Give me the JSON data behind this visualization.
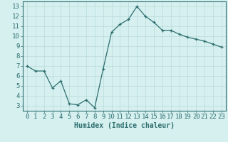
{
  "x": [
    0,
    1,
    2,
    3,
    4,
    5,
    6,
    7,
    8,
    9,
    10,
    11,
    12,
    13,
    14,
    15,
    16,
    17,
    18,
    19,
    20,
    21,
    22,
    23
  ],
  "y": [
    7.0,
    6.5,
    6.5,
    4.8,
    5.5,
    3.2,
    3.1,
    3.6,
    2.8,
    6.7,
    10.4,
    11.2,
    11.7,
    13.0,
    12.0,
    11.4,
    10.6,
    10.6,
    10.2,
    9.9,
    9.7,
    9.5,
    9.2,
    8.9
  ],
  "line_color": "#2e6e6e",
  "marker": "+",
  "marker_size": 3,
  "bg_color": "#d6f0f0",
  "grid_color": "#b8dada",
  "xlabel": "Humidex (Indice chaleur)",
  "xlim": [
    -0.5,
    23.5
  ],
  "ylim": [
    2.5,
    13.5
  ],
  "yticks": [
    3,
    4,
    5,
    6,
    7,
    8,
    9,
    10,
    11,
    12,
    13
  ],
  "xticks": [
    0,
    1,
    2,
    3,
    4,
    5,
    6,
    7,
    8,
    9,
    10,
    11,
    12,
    13,
    14,
    15,
    16,
    17,
    18,
    19,
    20,
    21,
    22,
    23
  ],
  "tick_color": "#2e6e6e",
  "label_fontsize": 7,
  "tick_fontsize": 6.5
}
